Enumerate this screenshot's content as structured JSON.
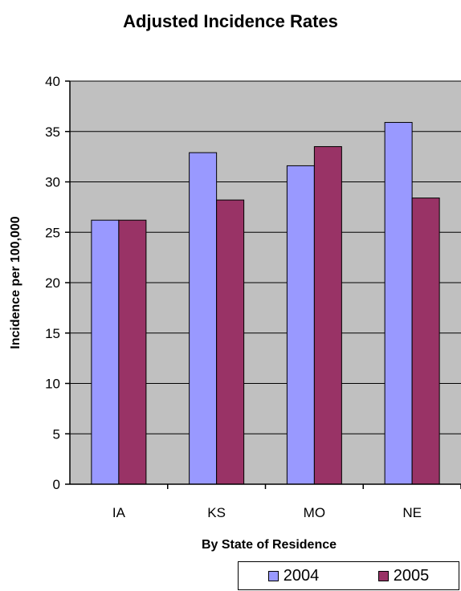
{
  "chart_data": {
    "type": "bar",
    "title": "Adjusted Incidence Rates",
    "xlabel": "By State of Residence",
    "ylabel": "Incidence per 100,000",
    "categories": [
      "IA",
      "KS",
      "MO",
      "NE"
    ],
    "series": [
      {
        "name": "2004",
        "values": [
          26.2,
          32.9,
          31.6,
          35.9
        ],
        "color": "#9999ff"
      },
      {
        "name": "2005",
        "values": [
          26.2,
          28.2,
          33.5,
          28.4
        ],
        "color": "#993366"
      }
    ],
    "ylim": [
      0,
      40
    ],
    "yticks": [
      0,
      5,
      10,
      15,
      20,
      25,
      30,
      35,
      40
    ],
    "grid": true,
    "plot_background": "#c0c0c0",
    "legend_position": "bottom-right"
  }
}
